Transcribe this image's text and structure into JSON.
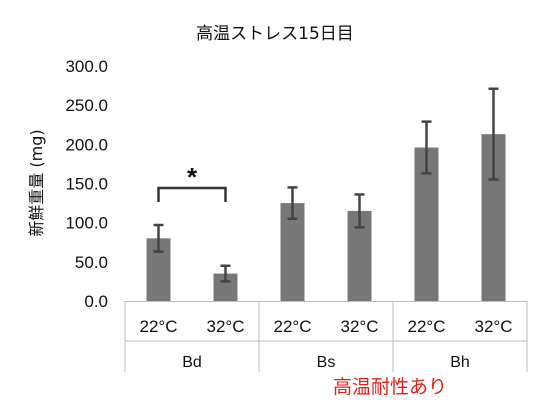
{
  "chart_data": {
    "type": "bar",
    "title": "高温ストレス15日目",
    "ylabel": "新鮮重量 (mg)",
    "xlabel": "",
    "ylim": [
      0,
      300
    ],
    "yticks": [
      "0.0",
      "50.0",
      "100.0",
      "150.0",
      "200.0",
      "250.0",
      "300.0"
    ],
    "grid": false,
    "categories": [
      "22°C",
      "32°C",
      "22°C",
      "32°C",
      "22°C",
      "32°C"
    ],
    "groups": [
      "Bd",
      "Bs",
      "Bh"
    ],
    "values": [
      80,
      35,
      125,
      115,
      196,
      213
    ],
    "errors": [
      17,
      10,
      20,
      21,
      33,
      58
    ],
    "bar_color": "#777777",
    "significance": {
      "between": [
        0,
        1
      ],
      "label": "*"
    },
    "annotation": {
      "text": "高温耐性あり",
      "color": "#e0201b"
    }
  }
}
